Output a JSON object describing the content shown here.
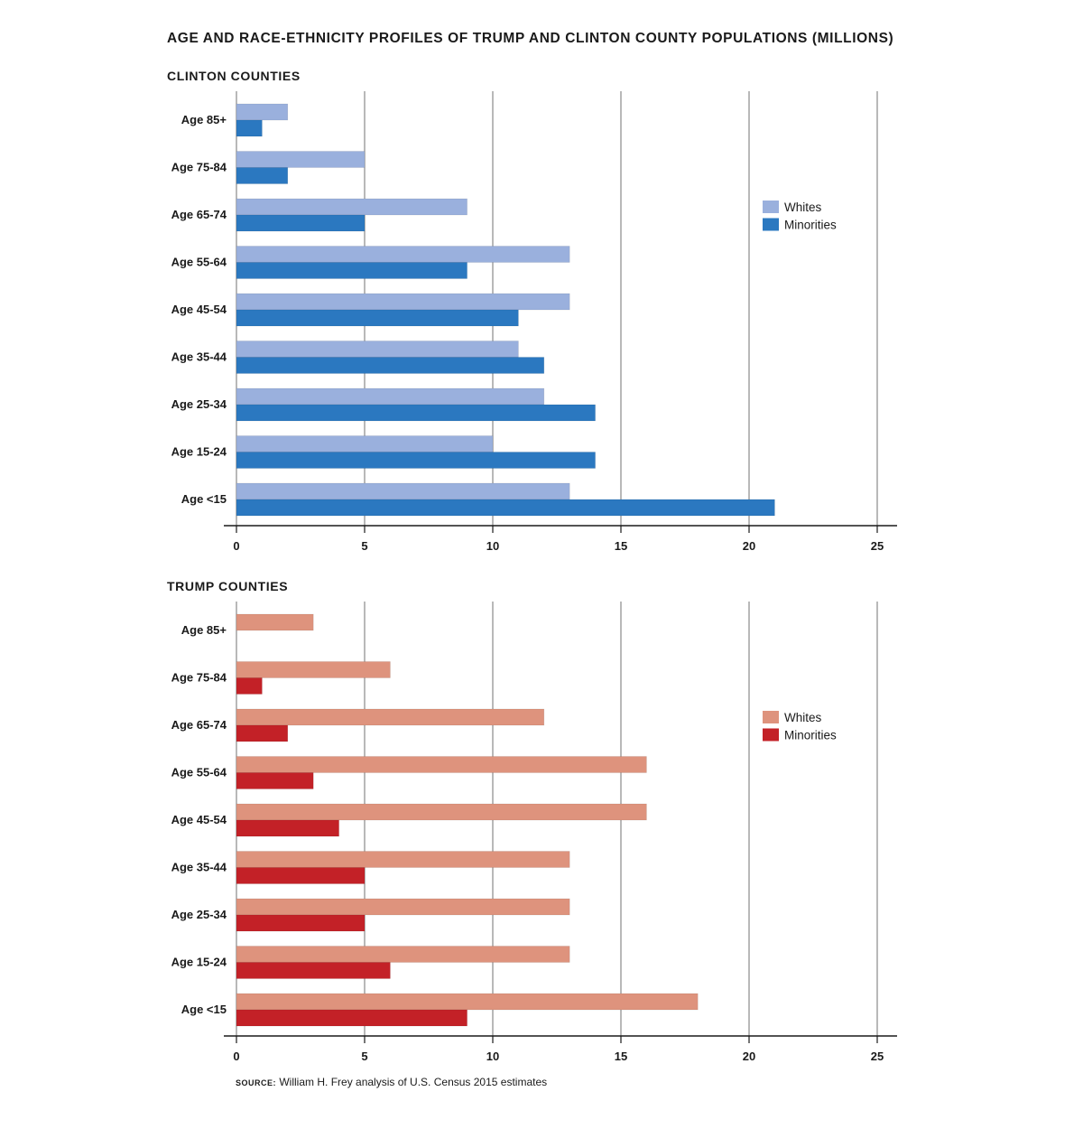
{
  "title": "AGE AND RACE-ETHNICITY PROFILES OF TRUMP AND CLINTON COUNTY POPULATIONS (MILLIONS)",
  "source_label": "SOURCE:",
  "source_text": "William H. Frey analysis of U.S. Census 2015 estimates",
  "chart_data": [
    {
      "type": "bar",
      "orientation": "horizontal",
      "title": "CLINTON COUNTIES",
      "categories": [
        "Age 85+",
        "Age 75-84",
        "Age 65-74",
        "Age 55-64",
        "Age 45-54",
        "Age 35-44",
        "Age 25-34",
        "Age 15-24",
        "Age <15"
      ],
      "series": [
        {
          "name": "Whites",
          "color": "#9ab0dd",
          "values": [
            2,
            5,
            9,
            13,
            13,
            11,
            12,
            10,
            13
          ]
        },
        {
          "name": "Minorities",
          "color": "#2b78c0",
          "values": [
            1,
            2,
            5,
            9,
            11,
            12,
            14,
            14,
            21
          ]
        }
      ],
      "xlim": [
        0,
        25
      ],
      "xticks": [
        0,
        5,
        10,
        15,
        20,
        25
      ],
      "grid": true,
      "legend": "right"
    },
    {
      "type": "bar",
      "orientation": "horizontal",
      "title": "TRUMP COUNTIES",
      "categories": [
        "Age 85+",
        "Age 75-84",
        "Age 65-74",
        "Age 55-64",
        "Age 45-54",
        "Age 35-44",
        "Age 25-34",
        "Age 15-24",
        "Age <15"
      ],
      "series": [
        {
          "name": "Whites",
          "color": "#de937d",
          "values": [
            3,
            6,
            12,
            16,
            16,
            13,
            13,
            13,
            18
          ]
        },
        {
          "name": "Minorities",
          "color": "#c32127",
          "values": [
            0,
            1,
            2,
            3,
            4,
            5,
            5,
            6,
            9
          ]
        }
      ],
      "xlim": [
        0,
        25
      ],
      "xticks": [
        0,
        5,
        10,
        15,
        20,
        25
      ],
      "grid": true,
      "legend": "right"
    }
  ]
}
